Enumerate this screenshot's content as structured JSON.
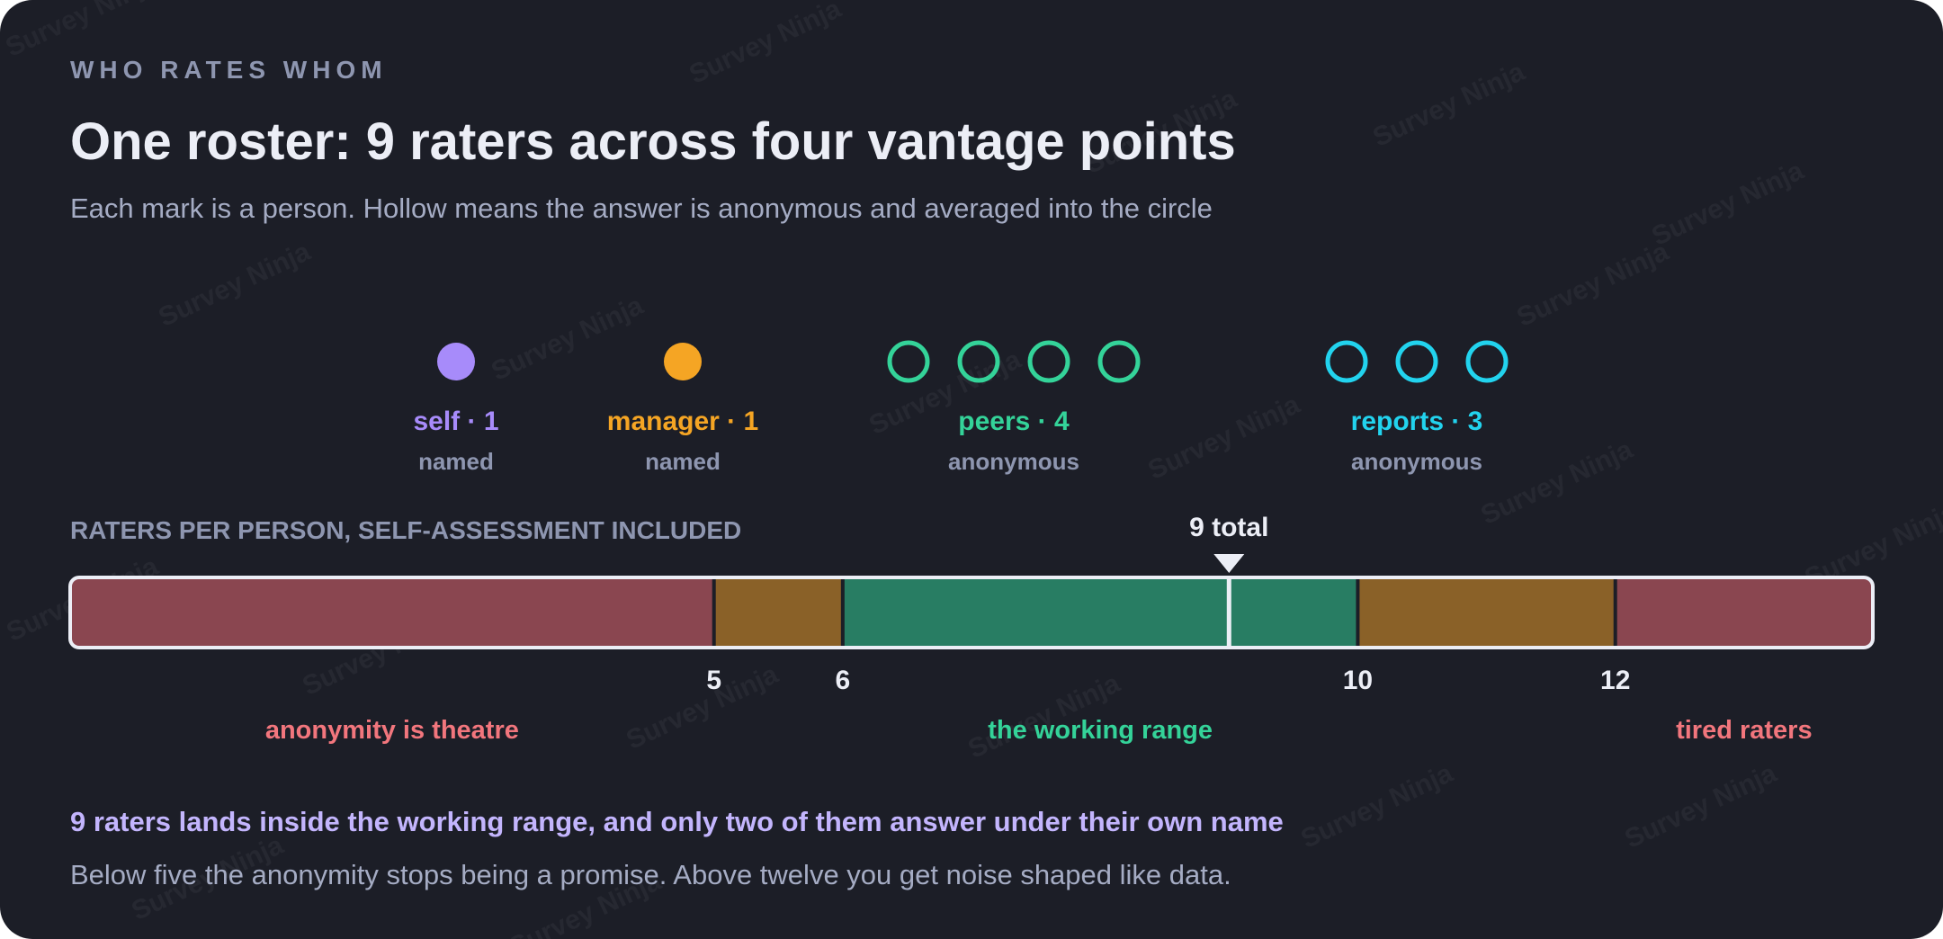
{
  "eyebrow": "WHO RATES WHOM",
  "title": "One roster: 9 raters across four vantage points",
  "subtitle": "Each mark is a person. Hollow means the answer is anonymous and averaged into the circle",
  "watermark": "Survey Ninja",
  "groups": [
    {
      "name": "self",
      "count": 1,
      "label": "self · 1",
      "kind": "named",
      "style": "filled",
      "color": "#a78bfa"
    },
    {
      "name": "manager",
      "count": 1,
      "label": "manager · 1",
      "kind": "named",
      "style": "filled",
      "color": "#f5a524"
    },
    {
      "name": "peers",
      "count": 4,
      "label": "peers · 4",
      "kind": "anonymous",
      "style": "hollow",
      "color": "#34d399"
    },
    {
      "name": "reports",
      "count": 3,
      "label": "reports · 3",
      "kind": "anonymous",
      "style": "hollow",
      "color": "#22d3ee"
    }
  ],
  "scale": {
    "caption": "RATERS PER PERSON, SELF-ASSESSMENT INCLUDED",
    "min": 0,
    "max": 14,
    "marker_value": 9,
    "marker_label": "9 total",
    "ticks": [
      {
        "value": 5,
        "label": "5"
      },
      {
        "value": 6,
        "label": "6"
      },
      {
        "value": 10,
        "label": "10"
      },
      {
        "value": 12,
        "label": "12"
      }
    ],
    "segments": [
      {
        "from": 0,
        "to": 5,
        "color": "#8a4650"
      },
      {
        "from": 5,
        "to": 6,
        "color": "#8a6128"
      },
      {
        "from": 6,
        "to": 10,
        "color": "#287d63"
      },
      {
        "from": 10,
        "to": 12,
        "color": "#8a6128"
      },
      {
        "from": 12,
        "to": 14,
        "color": "#8a4650"
      }
    ],
    "zones": [
      {
        "label": "anonymity is theatre",
        "from": 0,
        "to": 5,
        "color": "#f2767d"
      },
      {
        "label": "the working range",
        "from": 6,
        "to": 10,
        "color": "#34d399"
      },
      {
        "label": "tired raters",
        "from": 12,
        "to": 14,
        "color": "#f2767d"
      }
    ]
  },
  "verdict": "9 raters lands inside the working range, and only two of them answer under their own name",
  "explanation": "Below five the anonymity stops being a promise. Above twelve you get noise shaped like data.",
  "colors": {
    "background": "#1c1e27",
    "bar_outline": "#eceef6",
    "divider": "#1c1e27"
  }
}
